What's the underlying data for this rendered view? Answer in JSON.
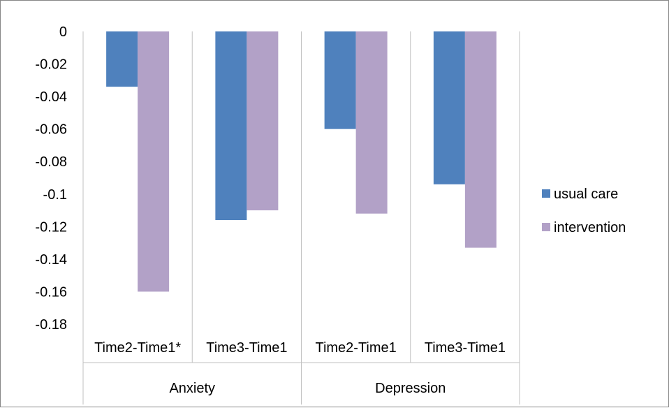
{
  "chart_data": {
    "type": "bar",
    "title": "",
    "xlabel": "",
    "ylabel": "",
    "ylim": [
      -0.18,
      0
    ],
    "yticks": [
      0,
      -0.02,
      -0.04,
      -0.06,
      -0.08,
      -0.1,
      -0.12,
      -0.14,
      -0.16,
      -0.18
    ],
    "ytick_labels": [
      "0",
      "-0.02",
      "-0.04",
      "-0.06",
      "-0.08",
      "-0.1",
      "-0.12",
      "-0.14",
      "-0.16",
      "-0.18"
    ],
    "categories": [
      "Time2-Time1*",
      "Time3-Time1",
      "Time2-Time1",
      "Time3-Time1"
    ],
    "groups": [
      {
        "label": "Anxiety",
        "categories": [
          0,
          1
        ]
      },
      {
        "label": "Depression",
        "categories": [
          2,
          3
        ]
      }
    ],
    "series": [
      {
        "name": "usual care",
        "color": "#4f81bd",
        "values": [
          -0.034,
          -0.116,
          -0.06,
          -0.094
        ]
      },
      {
        "name": "intervention",
        "color": "#b2a1c7",
        "values": [
          -0.16,
          -0.11,
          -0.112,
          -0.133
        ]
      }
    ],
    "legend_position": "right",
    "grid": false
  }
}
